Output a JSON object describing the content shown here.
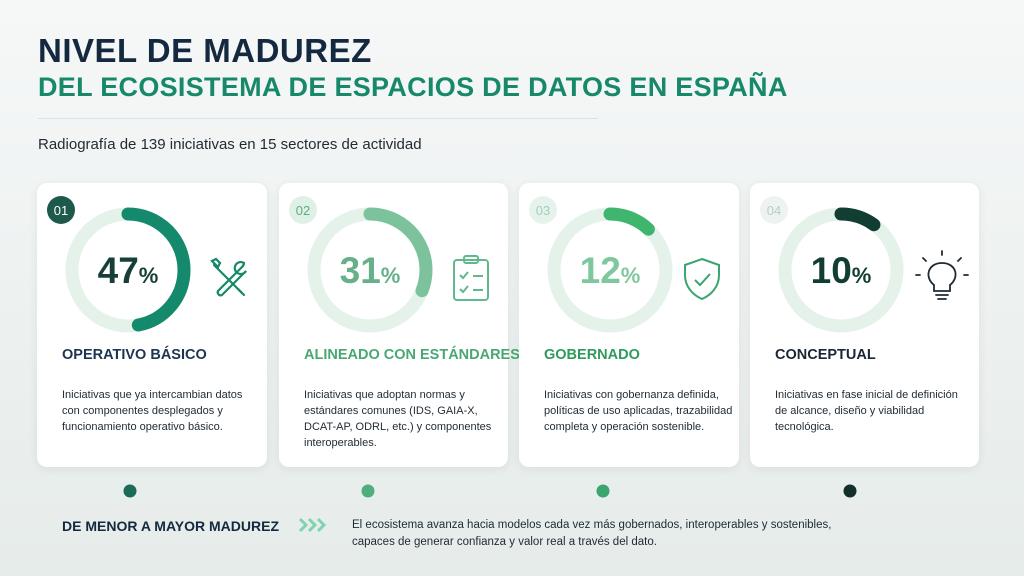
{
  "header": {
    "title": "NIVEL DE MADUREZ",
    "subtitle": "DEL ECOSISTEMA DE ESPACIOS DE DATOS EN ESPAÑA",
    "intro": "Radiografía de 139 iniciativas en 15 sectores de actividad"
  },
  "cards": [
    {
      "number": "01",
      "percent": 47,
      "unit": "%",
      "title": "OPERATIVO BÁSICO",
      "description": [
        "Iniciativas que ya intercambian datos",
        "con componentes desplegados y",
        "funcionamiento operativo básico."
      ]
    },
    {
      "number": "02",
      "percent": 31,
      "unit": "%",
      "title": "ALINEADO CON ESTÁNDARES",
      "description": [
        "Iniciativas que adoptan normas y",
        "estándares comunes (IDS, GAIA-X,",
        "DCAT-AP, ODRL, etc.) y componentes",
        "interoperables."
      ]
    },
    {
      "number": "03",
      "percent": 12,
      "unit": "%",
      "title": "GOBERNADO",
      "description": [
        "Iniciativas con gobernanza definida,",
        "políticas de uso aplicadas, trazabilidad",
        "completa y operación sostenible."
      ]
    },
    {
      "number": "04",
      "percent": 10,
      "unit": "%",
      "title": "CONCEPTUAL",
      "description": [
        "Iniciativas en fase inicial de definición",
        "de alcance, diseño y viabilidad",
        "tecnológica."
      ]
    }
  ],
  "footer": {
    "label": "DE MENOR A MAYOR MADUREZ",
    "text": [
      "El ecosistema avanza hacia modelos cada vez más gobernados, interoperables y sostenibles,",
      "capaces de generar confianza y valor real a través del dato."
    ]
  }
}
